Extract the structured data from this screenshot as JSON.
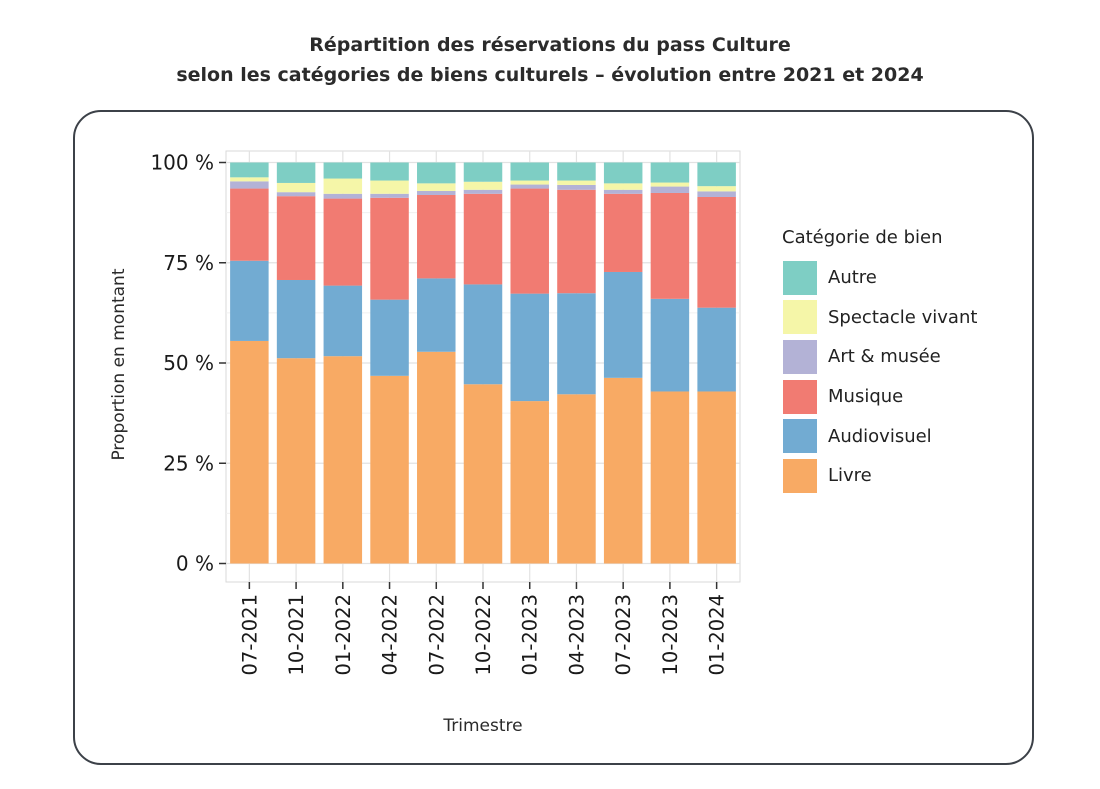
{
  "title_line1": "Répartition des réservations du pass Culture",
  "title_line2": "selon les catégories de biens culturels – évolution entre 2021 et 2024",
  "chart_data": {
    "type": "bar",
    "stacked": true,
    "ylabel": "Proportion en montant",
    "xlabel": "Trimestre",
    "ylim": [
      0,
      100
    ],
    "yticks": [
      "0 %",
      "25 %",
      "50 %",
      "75 %",
      "100 %"
    ],
    "grid": true,
    "legend_title": "Catégorie de bien",
    "legend_position": "right",
    "categories": [
      "07-2021",
      "10-2021",
      "01-2022",
      "04-2022",
      "07-2022",
      "10-2022",
      "01-2023",
      "04-2023",
      "07-2023",
      "10-2023",
      "01-2024"
    ],
    "series": [
      {
        "name": "Livre",
        "color": "#F8AA64",
        "values": [
          55.5,
          51.2,
          51.7,
          46.8,
          52.8,
          44.7,
          40.5,
          42.2,
          46.3,
          42.9,
          42.9
        ]
      },
      {
        "name": "Audiovisuel",
        "color": "#72ABD2",
        "values": [
          20.0,
          19.5,
          17.6,
          19.0,
          18.3,
          24.9,
          26.8,
          25.2,
          26.4,
          23.1,
          20.9
        ]
      },
      {
        "name": "Musique",
        "color": "#F17B72",
        "values": [
          18.0,
          20.9,
          21.7,
          25.4,
          20.8,
          22.6,
          26.2,
          25.8,
          19.5,
          26.4,
          27.6
        ]
      },
      {
        "name": "Art & musée",
        "color": "#B3B2D6",
        "values": [
          1.8,
          1.0,
          1.2,
          1.0,
          1.0,
          1.0,
          1.0,
          1.2,
          1.0,
          1.6,
          1.4
        ]
      },
      {
        "name": "Spectacle vivant",
        "color": "#F5F6A8",
        "values": [
          1.0,
          2.3,
          3.8,
          3.3,
          1.9,
          2.0,
          1.0,
          1.1,
          1.6,
          1.0,
          1.3
        ]
      },
      {
        "name": "Autre",
        "color": "#7ECEC4",
        "values": [
          3.7,
          5.1,
          4.0,
          4.5,
          5.2,
          4.8,
          4.5,
          4.5,
          5.2,
          5.0,
          5.9
        ]
      }
    ],
    "legend_order": [
      "Autre",
      "Spectacle vivant",
      "Art & musée",
      "Musique",
      "Audiovisuel",
      "Livre"
    ]
  }
}
